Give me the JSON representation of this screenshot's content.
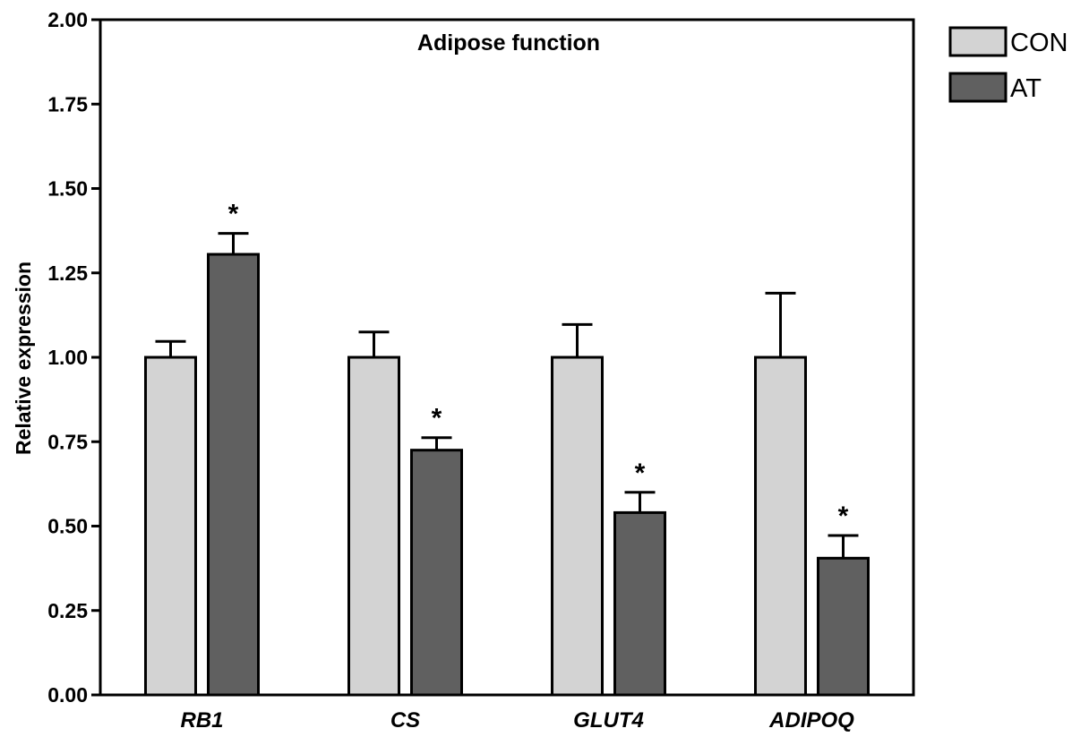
{
  "chart_data": {
    "type": "bar",
    "title": "Adipose function",
    "xlabel": "",
    "ylabel": "Relative expression",
    "ylim": [
      0,
      2.0
    ],
    "yticks": [
      "0.00",
      "0.25",
      "0.50",
      "0.75",
      "1.00",
      "1.25",
      "1.50",
      "1.75",
      "2.00"
    ],
    "categories": [
      "RB1",
      "CS",
      "GLUT4",
      "ADIPOQ"
    ],
    "series": [
      {
        "name": "CON",
        "color": "#d3d3d3",
        "values": [
          1.0,
          1.0,
          1.0,
          1.0
        ],
        "errors": [
          0.047,
          0.075,
          0.097,
          0.19
        ],
        "significance": [
          "",
          "",
          "",
          ""
        ]
      },
      {
        "name": "AT",
        "color": "#606060",
        "values": [
          1.305,
          0.725,
          0.54,
          0.405
        ],
        "errors": [
          0.062,
          0.037,
          0.06,
          0.067
        ],
        "significance": [
          "*",
          "*",
          "*",
          "*"
        ]
      }
    ],
    "legend_position": "top-right",
    "grid": false,
    "category_label_style": "bold italic"
  }
}
